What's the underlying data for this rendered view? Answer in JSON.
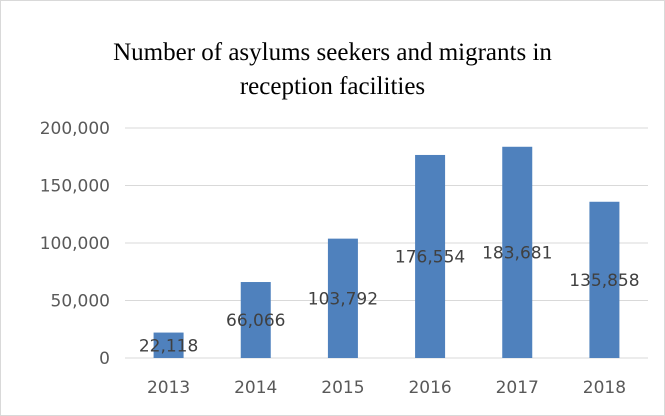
{
  "chart_data": {
    "type": "bar",
    "title_lines": [
      "Number of asylums seekers and migrants in",
      "reception facilities"
    ],
    "categories": [
      "2013",
      "2014",
      "2015",
      "2016",
      "2017",
      "2018"
    ],
    "values": [
      22118,
      66066,
      103792,
      176554,
      183681,
      135858
    ],
    "data_labels": [
      "22,118",
      "66,066",
      "103,792",
      "176,554",
      "183,681",
      "135,858"
    ],
    "y_ticks": [
      0,
      50000,
      100000,
      150000,
      200000
    ],
    "y_tick_labels": [
      "0",
      "50,000",
      "100,000",
      "150,000",
      "200,000"
    ],
    "ylim": [
      0,
      200000
    ],
    "grid": true,
    "legend": "none",
    "bar_color": "#4f81bd",
    "grid_color": "#d9d9d9"
  }
}
